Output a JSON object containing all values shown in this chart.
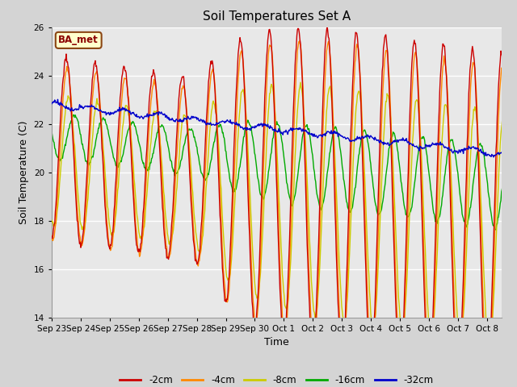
{
  "title": "Soil Temperatures Set A",
  "xlabel": "Time",
  "ylabel": "Soil Temperature (C)",
  "annotation": "BA_met",
  "ylim": [
    14,
    26
  ],
  "series_labels": [
    "-2cm",
    "-4cm",
    "-8cm",
    "-16cm",
    "-32cm"
  ],
  "series_colors": [
    "#cc0000",
    "#ff8800",
    "#cccc00",
    "#00aa00",
    "#0000cc"
  ],
  "fig_bg_color": "#d4d4d4",
  "plot_bg_color": "#e8e8e8",
  "tick_labels": [
    "Sep 23",
    "Sep 24",
    "Sep 25",
    "Sep 26",
    "Sep 27",
    "Sep 28",
    "Sep 29",
    "Sep 30",
    "Oct 1",
    "Oct 2",
    "Oct 3",
    "Oct 4",
    "Oct 5",
    "Oct 6",
    "Oct 7",
    "Oct 8"
  ],
  "linewidth": 1.0
}
